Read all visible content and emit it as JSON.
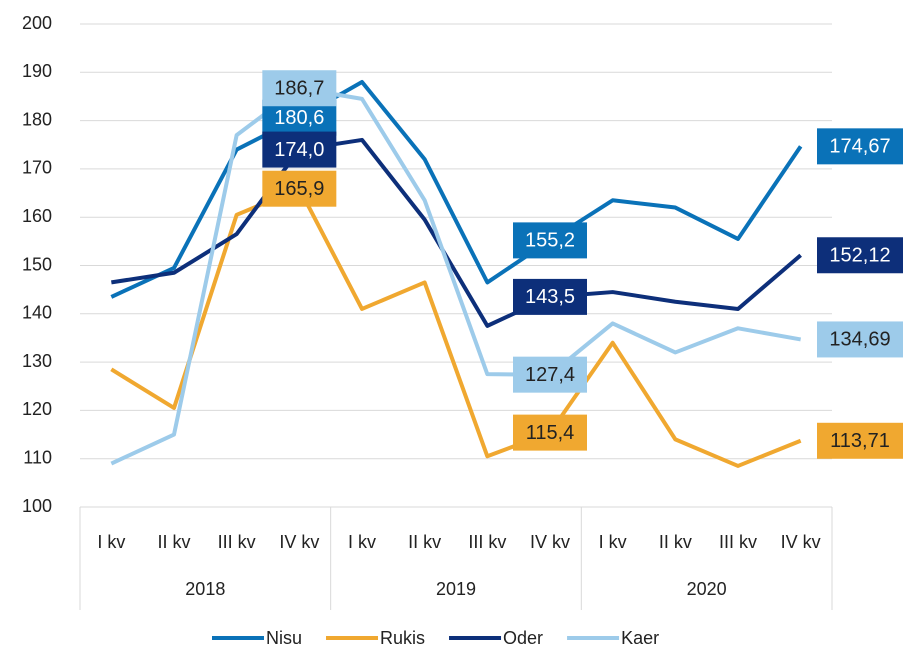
{
  "chart_data": {
    "type": "line",
    "categories": [
      "I kv",
      "II kv",
      "III kv",
      "IV kv",
      "I kv",
      "II kv",
      "III kv",
      "IV kv",
      "I kv",
      "II kv",
      "III kv",
      "IV kv"
    ],
    "category_groups": [
      "2018",
      "2019",
      "2020"
    ],
    "series": [
      {
        "name": "Nisu",
        "color": "#0a72b8",
        "values": [
          143.5,
          149.5,
          174,
          180.6,
          188,
          172,
          146.5,
          155.2,
          163.5,
          162,
          155.5,
          174.67
        ],
        "value_labels": [
          null,
          null,
          null,
          "180,6",
          null,
          null,
          null,
          "155,2",
          null,
          null,
          null,
          "174,67"
        ]
      },
      {
        "name": "Rukis",
        "color": "#f0a830",
        "values": [
          128.5,
          120.5,
          160.5,
          165.9,
          141,
          146.5,
          110.5,
          115.4,
          134,
          114,
          108.5,
          113.71
        ],
        "value_labels": [
          null,
          null,
          null,
          "165,9",
          null,
          null,
          null,
          "115,4",
          null,
          null,
          null,
          "113,71"
        ]
      },
      {
        "name": "Oder",
        "color": "#0d2f7a",
        "values": [
          146.5,
          148.5,
          156.5,
          174,
          176,
          159.5,
          137.5,
          143.5,
          144.5,
          142.5,
          141,
          152.12
        ],
        "value_labels": [
          null,
          null,
          null,
          "174,0",
          null,
          null,
          null,
          "143,5",
          null,
          null,
          null,
          "152,12"
        ]
      },
      {
        "name": "Kaer",
        "color": "#9dcbea",
        "values": [
          109,
          115,
          177,
          186.7,
          184.5,
          163.5,
          127.5,
          127.4,
          138,
          132,
          137,
          134.69
        ],
        "value_labels": [
          null,
          null,
          null,
          "186,7",
          null,
          null,
          null,
          "127,4",
          null,
          null,
          null,
          "134,69"
        ]
      }
    ],
    "ylim": [
      100,
      200
    ],
    "yticks": [
      100,
      110,
      120,
      130,
      140,
      150,
      160,
      170,
      180,
      190,
      200
    ],
    "grid": true,
    "legend": "bottom"
  }
}
